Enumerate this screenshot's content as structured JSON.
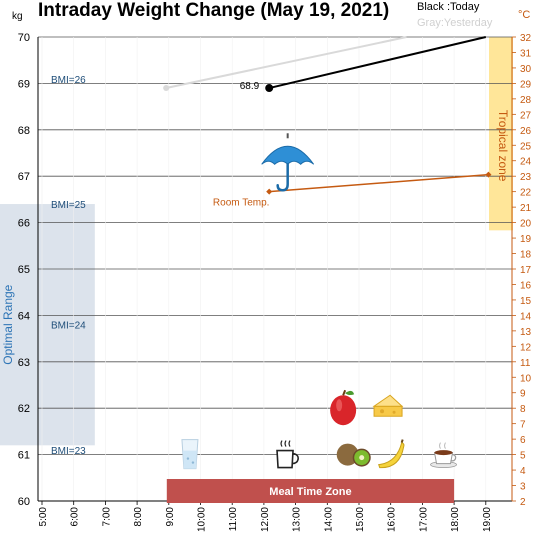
{
  "chart_data": {
    "type": "line",
    "title": "Intraday Weight Change (May 19, 2021)",
    "left_axis": {
      "unit": "kg",
      "min": 60,
      "max": 70,
      "ticks": [
        60,
        61,
        62,
        63,
        64,
        65,
        66,
        67,
        68,
        69,
        70
      ]
    },
    "right_axis": {
      "unit": "°C",
      "min": 2,
      "max": 32,
      "ticks": [
        2,
        3,
        4,
        5,
        6,
        7,
        8,
        9,
        10,
        11,
        12,
        13,
        14,
        15,
        16,
        17,
        18,
        19,
        20,
        21,
        22,
        23,
        24,
        25,
        26,
        27,
        28,
        29,
        30,
        31,
        32
      ]
    },
    "x_axis": {
      "ticks": [
        "5:00",
        "6:00",
        "7:00",
        "8:00",
        "9:00",
        "10:00",
        "11:00",
        "12:00",
        "13:00",
        "14:00",
        "15:00",
        "16:00",
        "17:00",
        "18:00",
        "19:00"
      ]
    },
    "legend": {
      "today": "Black :Today",
      "yesterday": "Gray:Yesterday"
    },
    "colors": {
      "today": "#000000",
      "yesterday": "#d9d9d9",
      "temperature": "#c55a11",
      "optimal": "#dce3ec",
      "tropical": "#ffe699",
      "meal": "#c0504d",
      "bmi_text": "#1f4e79"
    },
    "series": [
      {
        "name": "Black :Today",
        "points": [
          {
            "x": "12:10",
            "y": 68.9,
            "label": "68.9"
          },
          {
            "x": "19:00",
            "y": 70.0
          }
        ]
      },
      {
        "name": "Gray:Yesterday",
        "points": [
          {
            "x": "8:55",
            "y": 68.9
          },
          {
            "x": "16:30",
            "y": 70.0
          }
        ]
      },
      {
        "name": "Room Temp.",
        "axis": "right",
        "points": [
          {
            "x": "12:10",
            "y": 22.0
          },
          {
            "x": "19:05",
            "y": 23.1
          }
        ]
      }
    ],
    "bmi_lines": [
      {
        "label": "BMI=26",
        "kg": 69.1
      },
      {
        "label": "BMI=25",
        "kg": 66.4
      },
      {
        "label": "BMI=24",
        "kg": 63.8
      },
      {
        "label": "BMI=23",
        "kg": 61.1
      }
    ],
    "optimal_range": {
      "label": "Optimal Range",
      "kg_min": 61.2,
      "kg_max": 66.4,
      "x_start": "5:00",
      "x_end": "6:40"
    },
    "tropical_zone": {
      "label": "Tropical zone",
      "temp_min": 19.5,
      "temp_max": 32
    },
    "meal_zone": {
      "label": "Meal Time Zone",
      "x_start": "9:00",
      "x_end": "18:00"
    },
    "icons": [
      {
        "name": "umbrella-icon",
        "x": "12:45",
        "kg": 67.3
      },
      {
        "name": "water-glass-icon",
        "x": "9:40",
        "kg": 61.0
      },
      {
        "name": "coffee-cup-icon",
        "x": "12:40",
        "kg": 61.0
      },
      {
        "name": "apple-icon",
        "x": "14:30",
        "kg": 62.0
      },
      {
        "name": "cheese-icon",
        "x": "15:55",
        "kg": 62.0
      },
      {
        "name": "kiwi-icon",
        "x": "14:50",
        "kg": 61.0
      },
      {
        "name": "banana-icon",
        "x": "16:00",
        "kg": 61.0
      },
      {
        "name": "tea-cup-icon",
        "x": "17:40",
        "kg": 61.0
      }
    ]
  }
}
